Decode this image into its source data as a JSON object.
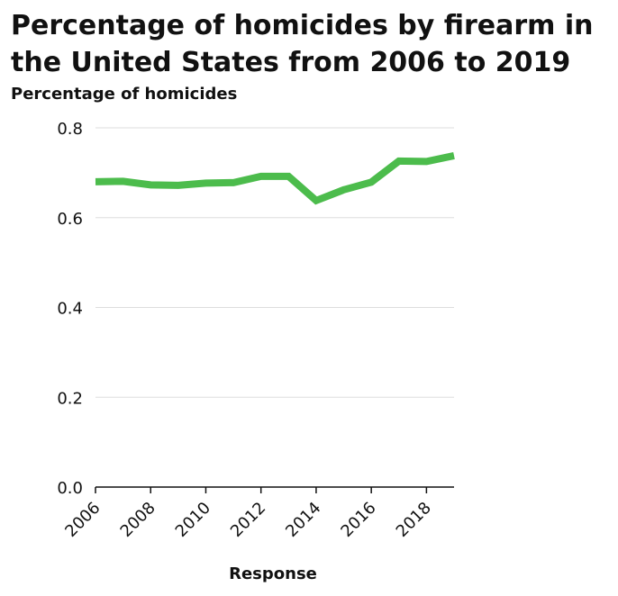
{
  "chart_data": {
    "type": "line",
    "title": "Percentage of homicides by firearm in the United States from 2006 to 2019",
    "ylabel": "Percentage of homicides",
    "xlabel": "Response",
    "x": [
      2006,
      2007,
      2008,
      2009,
      2010,
      2011,
      2012,
      2013,
      2014,
      2015,
      2016,
      2017,
      2018,
      2019
    ],
    "series": [
      {
        "values": [
          0.68,
          0.681,
          0.673,
          0.672,
          0.677,
          0.678,
          0.692,
          0.692,
          0.638,
          0.662,
          0.679,
          0.726,
          0.725,
          0.738
        ]
      }
    ],
    "xlim": [
      2006,
      2019
    ],
    "ylim": [
      0,
      0.8
    ],
    "xticks": [
      2006,
      2008,
      2010,
      2012,
      2014,
      2016,
      2018
    ],
    "yticks": [
      {
        "value": 0,
        "label": "0.0"
      },
      {
        "value": 0.2,
        "label": "0.2"
      },
      {
        "value": 0.4,
        "label": "0.4"
      },
      {
        "value": 0.6,
        "label": "0.6"
      },
      {
        "value": 0.8,
        "label": "0.8"
      }
    ],
    "grid": "horizontal",
    "legend": "none",
    "colors": {
      "line": "#4cbc4c",
      "grid": "#dddddd",
      "axis": "#111111"
    }
  }
}
